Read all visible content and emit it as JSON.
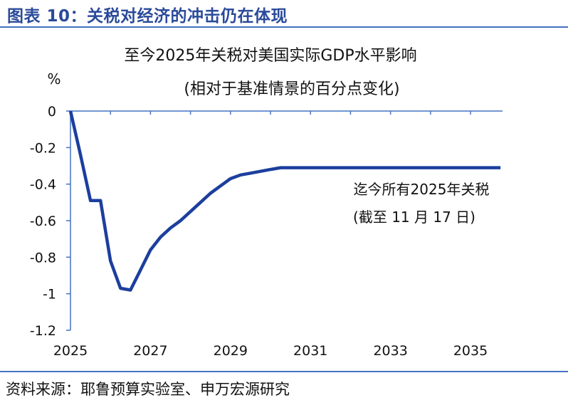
{
  "figure_title": "图表 10：关税对经济的冲击仍在体现",
  "source": "资料来源：耶鲁预算实验室、申万宏源研究",
  "colors": {
    "accent": "#2a4a9a",
    "rule": "#4472c4",
    "line": "#1c3f9e",
    "axis": "#4472c4"
  },
  "chart_data": {
    "type": "line",
    "title": "至今2025年关税对美国实际GDP水平影响",
    "subtitle": "(相对于基准情景的百分点变化)",
    "ylabel": "%",
    "xlabel": "",
    "xlim": [
      2025,
      2035.8
    ],
    "ylim": [
      -1.2,
      0
    ],
    "xticks": [
      2025,
      2027,
      2029,
      2031,
      2033,
      2035
    ],
    "yticks": [
      0,
      -0.2,
      -0.4,
      -0.6,
      -0.8,
      -1,
      -1.2
    ],
    "xtick_labels": [
      "2025",
      "2027",
      "2029",
      "2031",
      "2033",
      "2035"
    ],
    "ytick_labels": [
      "0",
      "-0.2",
      "-0.4",
      "-0.6",
      "-0.8",
      "-1",
      "-1.2"
    ],
    "grid": false,
    "legend": false,
    "annotations": [
      "迄今所有2025年关税",
      "(截至 11 月 17 日)"
    ],
    "series": [
      {
        "x": [
          2025.0,
          2025.25,
          2025.5,
          2025.75,
          2026.0,
          2026.25,
          2026.5,
          2026.75,
          2027.0,
          2027.25,
          2027.5,
          2027.75,
          2028.0,
          2028.25,
          2028.5,
          2028.75,
          2029.0,
          2029.25,
          2029.5,
          2029.75,
          2030.0,
          2030.25,
          2030.5,
          2030.75,
          2031.0,
          2031.5,
          2032.0,
          2032.5,
          2033.0,
          2033.5,
          2034.0,
          2034.5,
          2035.0,
          2035.5,
          2035.75
        ],
        "values": [
          0,
          -0.24,
          -0.49,
          -0.49,
          -0.82,
          -0.97,
          -0.98,
          -0.87,
          -0.76,
          -0.69,
          -0.64,
          -0.6,
          -0.55,
          -0.5,
          -0.45,
          -0.41,
          -0.37,
          -0.35,
          -0.34,
          -0.33,
          -0.32,
          -0.31,
          -0.31,
          -0.31,
          -0.31,
          -0.31,
          -0.31,
          -0.31,
          -0.31,
          -0.31,
          -0.31,
          -0.31,
          -0.31,
          -0.31,
          -0.31
        ]
      }
    ]
  }
}
